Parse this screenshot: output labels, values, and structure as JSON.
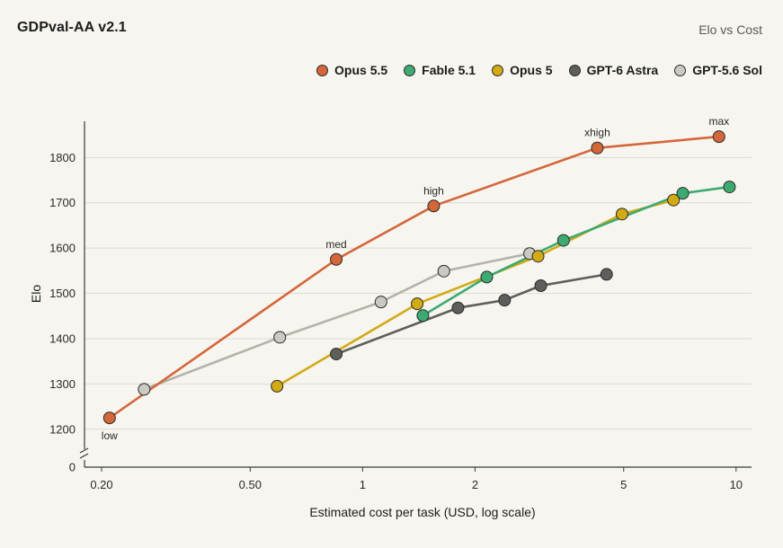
{
  "header": {
    "title": "GDPval-AA v2.1",
    "subtitle": "Elo vs Cost"
  },
  "chart_data": {
    "type": "line",
    "title": "GDPval-AA v2.1",
    "subtitle": "Elo vs Cost",
    "xlabel": "Estimated cost per task (USD, log scale)",
    "ylabel": "Elo",
    "xscale": "log",
    "xlim": [
      0.18,
      11
    ],
    "ylim": [
      1150,
      1880
    ],
    "x_ticks": [
      0.2,
      0.5,
      1,
      2,
      5,
      10
    ],
    "x_tick_labels": [
      "0.20",
      "0.50",
      "1",
      "2",
      "5",
      "10"
    ],
    "y_ticks": [
      1200,
      1300,
      1400,
      1500,
      1600,
      1700,
      1800
    ],
    "y_tick_labels": [
      "1200",
      "1300",
      "1400",
      "1500",
      "1600",
      "1700",
      "1800"
    ],
    "y_zero_label": "0",
    "axis_break": "y",
    "grid": "horizontal",
    "legend_position": "top-right",
    "series": [
      {
        "name": "Opus 5.5",
        "color": "#d4673a",
        "points": [
          {
            "x": 0.21,
            "y": 1225,
            "label": "low"
          },
          {
            "x": 0.85,
            "y": 1575,
            "label": "med"
          },
          {
            "x": 1.55,
            "y": 1693,
            "label": "high"
          },
          {
            "x": 4.25,
            "y": 1821,
            "label": "xhigh"
          },
          {
            "x": 9.0,
            "y": 1846,
            "label": "max"
          }
        ]
      },
      {
        "name": "Fable 5.1",
        "color": "#3daa72",
        "points": [
          {
            "x": 1.45,
            "y": 1451
          },
          {
            "x": 2.15,
            "y": 1536
          },
          {
            "x": 3.45,
            "y": 1617
          },
          {
            "x": 7.2,
            "y": 1721
          },
          {
            "x": 9.6,
            "y": 1735
          }
        ]
      },
      {
        "name": "Opus 5",
        "color": "#d1aa14",
        "points": [
          {
            "x": 0.59,
            "y": 1295
          },
          {
            "x": 1.4,
            "y": 1477
          },
          {
            "x": 2.95,
            "y": 1582
          },
          {
            "x": 4.95,
            "y": 1675
          },
          {
            "x": 6.8,
            "y": 1706
          }
        ]
      },
      {
        "name": "GPT-6 Astra",
        "color": "#5e5e5a",
        "points": [
          {
            "x": 0.85,
            "y": 1366
          },
          {
            "x": 1.8,
            "y": 1468
          },
          {
            "x": 2.4,
            "y": 1485
          },
          {
            "x": 3.0,
            "y": 1517
          },
          {
            "x": 4.5,
            "y": 1542
          }
        ]
      },
      {
        "name": "GPT-5.6 Sol",
        "color": "#cacac2",
        "line_color": "#b4b4ab",
        "points": [
          {
            "x": 0.26,
            "y": 1288
          },
          {
            "x": 0.6,
            "y": 1403
          },
          {
            "x": 1.12,
            "y": 1481
          },
          {
            "x": 1.65,
            "y": 1549
          },
          {
            "x": 2.8,
            "y": 1588
          }
        ]
      }
    ]
  }
}
